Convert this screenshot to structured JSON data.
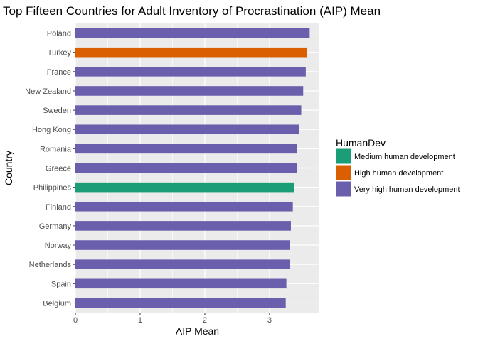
{
  "chart_data": {
    "type": "bar",
    "orientation": "horizontal",
    "title": "Top Fifteen Countries for Adult Inventory of Procrastination (AIP) Mean",
    "xlabel": "AIP Mean",
    "ylabel": "Country",
    "xlim": [
      0,
      3.77
    ],
    "x_ticks": [
      0,
      1,
      2,
      3
    ],
    "categories": [
      "Poland",
      "Turkey",
      "France",
      "New Zealand",
      "Sweden",
      "Hong Kong",
      "Romania",
      "Greece",
      "Philippines",
      "Finland",
      "Germany",
      "Norway",
      "Netherlands",
      "Spain",
      "Belgium"
    ],
    "values": [
      3.62,
      3.58,
      3.56,
      3.52,
      3.49,
      3.46,
      3.42,
      3.42,
      3.38,
      3.36,
      3.33,
      3.31,
      3.31,
      3.26,
      3.25
    ],
    "groups": [
      "Very high human development",
      "High human development",
      "Very high human development",
      "Very high human development",
      "Very high human development",
      "Very high human development",
      "Very high human development",
      "Very high human development",
      "Medium human development",
      "Very high human development",
      "Very high human development",
      "Very high human development",
      "Very high human development",
      "Very high human development",
      "Very high human development"
    ],
    "legend": {
      "title": "HumanDev",
      "placement": "right",
      "entries": [
        {
          "name": "Medium human development",
          "color": "#1b9e77"
        },
        {
          "name": "High human development",
          "color": "#d95f02"
        },
        {
          "name": "Very high human development",
          "color": "#6a5fad"
        }
      ]
    },
    "panel_background": "#ebebeb",
    "grid": true
  }
}
